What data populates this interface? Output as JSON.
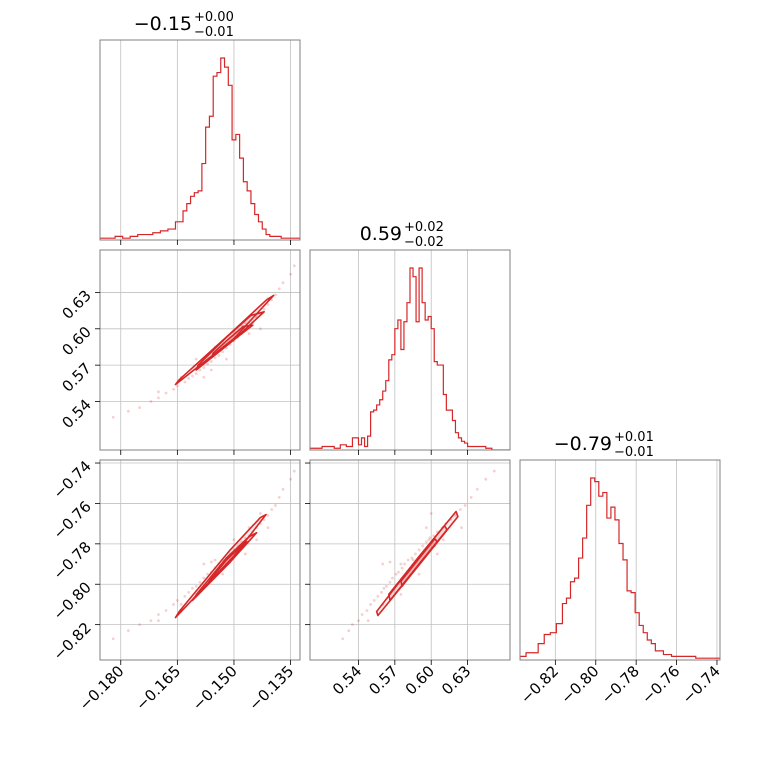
{
  "chart_data": {
    "type": "corner",
    "color": "#d62728",
    "grid": true,
    "parameters": [
      {
        "title": {
          "value": "−0.15",
          "upper": "+0.00",
          "lower": "−0.01"
        },
        "range": [
          -0.1855,
          -0.1325
        ],
        "ticks": [
          -0.18,
          -0.165,
          -0.15,
          -0.135
        ],
        "tick_labels": [
          "−0.180",
          "−0.165",
          "−0.150",
          "−0.135"
        ],
        "histogram": {
          "edges": [
            -0.1855,
            -0.1835,
            -0.1815,
            -0.1795,
            -0.1775,
            -0.1755,
            -0.1735,
            -0.1715,
            -0.1695,
            -0.1675,
            -0.1655,
            -0.1635,
            -0.1625,
            -0.1615,
            -0.1605,
            -0.1595,
            -0.1585,
            -0.1575,
            -0.1565,
            -0.1555,
            -0.1545,
            -0.1535,
            -0.1525,
            -0.1515,
            -0.1505,
            -0.1495,
            -0.1485,
            -0.1475,
            -0.1465,
            -0.1455,
            -0.1445,
            -0.1435,
            -0.1425,
            -0.1415,
            -0.1405,
            -0.1395,
            -0.1375,
            -0.1355,
            -0.1325
          ],
          "counts": [
            1,
            1,
            2,
            1,
            2,
            3,
            3,
            4,
            5,
            6,
            10,
            16,
            20,
            24,
            26,
            27,
            42,
            62,
            68,
            90,
            92,
            100,
            95,
            85,
            55,
            58,
            45,
            32,
            27,
            20,
            14,
            10,
            6,
            3,
            2,
            2,
            1,
            1
          ]
        }
      },
      {
        "title": {
          "value": "0.59",
          "upper": "+0.02",
          "lower": "−0.02"
        },
        "range": [
          0.5,
          0.665
        ],
        "ticks": [
          0.54,
          0.57,
          0.6,
          0.63
        ],
        "tick_labels": [
          "0.54",
          "0.57",
          "0.60",
          "0.63"
        ],
        "histogram": {
          "edges": [
            0.5,
            0.505,
            0.51,
            0.515,
            0.52,
            0.525,
            0.53,
            0.535,
            0.54,
            0.5425,
            0.545,
            0.5475,
            0.55,
            0.5525,
            0.555,
            0.5575,
            0.56,
            0.5625,
            0.565,
            0.5675,
            0.57,
            0.5725,
            0.575,
            0.5775,
            0.58,
            0.5825,
            0.585,
            0.5875,
            0.59,
            0.5925,
            0.595,
            0.5975,
            0.6,
            0.6025,
            0.605,
            0.6075,
            0.61,
            0.6125,
            0.615,
            0.6175,
            0.62,
            0.6225,
            0.625,
            0.6275,
            0.63,
            0.635,
            0.64,
            0.645,
            0.65,
            0.665
          ],
          "counts": [
            1,
            1,
            2,
            2,
            1,
            3,
            2,
            7,
            3,
            7,
            2,
            8,
            22,
            23,
            26,
            29,
            34,
            40,
            52,
            55,
            70,
            75,
            58,
            74,
            85,
            105,
            100,
            74,
            105,
            85,
            75,
            77,
            70,
            51,
            49,
            49,
            32,
            23,
            23,
            17,
            10,
            7,
            5,
            4,
            2,
            2,
            2,
            1,
            0
          ]
        }
      },
      {
        "title": {
          "value": "−0.79",
          "upper": "+0.01",
          "lower": "−0.01"
        },
        "range": [
          -0.8375,
          -0.7385
        ],
        "ticks": [
          -0.82,
          -0.8,
          -0.78,
          -0.76,
          -0.74
        ],
        "tick_labels": [
          "−0.82",
          "−0.80",
          "−0.78",
          "−0.76",
          "−0.74"
        ],
        "histogram": {
          "edges": [
            -0.8375,
            -0.8345,
            -0.8315,
            -0.8285,
            -0.8255,
            -0.8225,
            -0.8195,
            -0.8165,
            -0.8145,
            -0.8125,
            -0.8105,
            -0.8085,
            -0.8065,
            -0.8045,
            -0.8025,
            -0.8005,
            -0.7985,
            -0.7965,
            -0.7945,
            -0.7925,
            -0.7905,
            -0.7885,
            -0.7865,
            -0.7845,
            -0.7825,
            -0.7805,
            -0.7785,
            -0.7765,
            -0.7745,
            -0.7725,
            -0.7705,
            -0.7665,
            -0.7625,
            -0.7585,
            -0.7545,
            -0.7505,
            -0.7445,
            -0.7385
          ],
          "counts": [
            2,
            4,
            4,
            9,
            14,
            15,
            20,
            31,
            34,
            43,
            45,
            56,
            67,
            85,
            100,
            98,
            90,
            92,
            78,
            84,
            77,
            64,
            55,
            38,
            37,
            26,
            19,
            15,
            11,
            9,
            5,
            3,
            2,
            2,
            2,
            1,
            1
          ]
        }
      }
    ],
    "scatter_samples": [
      [
        -0.182,
        0.527,
        -0.827
      ],
      [
        -0.178,
        0.532,
        -0.823
      ],
      [
        -0.175,
        0.535,
        -0.82
      ],
      [
        -0.172,
        0.54,
        -0.818
      ],
      [
        -0.17,
        0.543,
        -0.815
      ],
      [
        -0.168,
        0.547,
        -0.813
      ],
      [
        -0.166,
        0.55,
        -0.81
      ],
      [
        -0.165,
        0.553,
        -0.808
      ],
      [
        -0.163,
        0.556,
        -0.806
      ],
      [
        -0.162,
        0.559,
        -0.804
      ],
      [
        -0.161,
        0.561,
        -0.802
      ],
      [
        -0.16,
        0.563,
        -0.801
      ],
      [
        -0.159,
        0.566,
        -0.799
      ],
      [
        -0.158,
        0.568,
        -0.797
      ],
      [
        -0.157,
        0.571,
        -0.795
      ],
      [
        -0.156,
        0.573,
        -0.794
      ],
      [
        -0.155,
        0.576,
        -0.792
      ],
      [
        -0.154,
        0.578,
        -0.79
      ],
      [
        -0.153,
        0.581,
        -0.788
      ],
      [
        -0.152,
        0.584,
        -0.787
      ],
      [
        -0.151,
        0.587,
        -0.785
      ],
      [
        -0.15,
        0.59,
        -0.783
      ],
      [
        -0.149,
        0.593,
        -0.781
      ],
      [
        -0.148,
        0.596,
        -0.779
      ],
      [
        -0.147,
        0.599,
        -0.777
      ],
      [
        -0.146,
        0.602,
        -0.776
      ],
      [
        -0.145,
        0.605,
        -0.774
      ],
      [
        -0.144,
        0.609,
        -0.772
      ],
      [
        -0.143,
        0.612,
        -0.77
      ],
      [
        -0.142,
        0.616,
        -0.768
      ],
      [
        -0.141,
        0.62,
        -0.766
      ],
      [
        -0.14,
        0.624,
        -0.763
      ],
      [
        -0.139,
        0.628,
        -0.761
      ],
      [
        -0.138,
        0.633,
        -0.757
      ],
      [
        -0.137,
        0.638,
        -0.753
      ],
      [
        -0.135,
        0.645,
        -0.748
      ],
      [
        -0.134,
        0.652,
        -0.744
      ],
      [
        -0.16,
        0.575,
        -0.805
      ],
      [
        -0.152,
        0.575,
        -0.79
      ],
      [
        -0.147,
        0.605,
        -0.785
      ],
      [
        -0.155,
        0.585,
        -0.788
      ],
      [
        -0.143,
        0.6,
        -0.765
      ],
      [
        -0.158,
        0.56,
        -0.79
      ],
      [
        -0.15,
        0.598,
        -0.778
      ],
      [
        -0.164,
        0.56,
        -0.81
      ],
      [
        -0.146,
        0.596,
        -0.772
      ],
      [
        -0.141,
        0.625,
        -0.772
      ],
      [
        -0.17,
        0.548,
        -0.818
      ],
      [
        -0.153,
        0.59,
        -0.795
      ],
      [
        -0.148,
        0.603,
        -0.781
      ],
      [
        -0.156,
        0.566,
        -0.789
      ],
      [
        -0.144,
        0.61,
        -0.778
      ]
    ],
    "contours": {
      "pair_1_0": [
        [
          [
            -0.1655,
            0.554
          ],
          [
            -0.15,
            0.592
          ],
          [
            -0.1395,
            0.6275
          ],
          [
            -0.1415,
            0.6235
          ],
          [
            -0.151,
            0.596
          ],
          [
            -0.1645,
            0.558
          ]
        ],
        [
          [
            -0.16,
            0.566
          ],
          [
            -0.15,
            0.591
          ],
          [
            -0.142,
            0.614
          ],
          [
            -0.1455,
            0.611
          ],
          [
            -0.152,
            0.593
          ],
          [
            -0.1595,
            0.57
          ]
        ],
        [
          [
            -0.156,
            0.576
          ],
          [
            -0.15,
            0.591
          ],
          [
            -0.145,
            0.603
          ],
          [
            -0.1475,
            0.602
          ],
          [
            -0.152,
            0.59
          ],
          [
            -0.1555,
            0.58
          ]
        ]
      ],
      "pair_2_0": [
        [
          [
            -0.1655,
            -0.8165
          ],
          [
            -0.15,
            -0.786
          ],
          [
            -0.1415,
            -0.7655
          ],
          [
            -0.143,
            -0.767
          ],
          [
            -0.151,
            -0.783
          ],
          [
            -0.1645,
            -0.8135
          ]
        ],
        [
          [
            -0.161,
            -0.808
          ],
          [
            -0.151,
            -0.789
          ],
          [
            -0.144,
            -0.7745
          ],
          [
            -0.146,
            -0.7765
          ],
          [
            -0.152,
            -0.787
          ],
          [
            -0.1595,
            -0.804
          ]
        ],
        [
          [
            -0.157,
            -0.8
          ],
          [
            -0.151,
            -0.789
          ],
          [
            -0.1465,
            -0.779
          ],
          [
            -0.148,
            -0.781
          ],
          [
            -0.152,
            -0.788
          ],
          [
            -0.156,
            -0.797
          ]
        ]
      ],
      "pair_2_1": [
        [
          [
            0.556,
            -0.8155
          ],
          [
            0.59,
            -0.7905
          ],
          [
            0.622,
            -0.7665
          ],
          [
            0.6205,
            -0.764
          ],
          [
            0.589,
            -0.787
          ],
          [
            0.555,
            -0.8135
          ]
        ],
        [
          [
            0.566,
            -0.808
          ],
          [
            0.59,
            -0.79
          ],
          [
            0.613,
            -0.773
          ],
          [
            0.611,
            -0.771
          ],
          [
            0.589,
            -0.787
          ],
          [
            0.565,
            -0.805
          ]
        ],
        [
          [
            0.576,
            -0.801
          ],
          [
            0.59,
            -0.79
          ],
          [
            0.605,
            -0.779
          ],
          [
            0.603,
            -0.7775
          ],
          [
            0.589,
            -0.788
          ],
          [
            0.575,
            -0.7985
          ]
        ]
      ]
    }
  }
}
